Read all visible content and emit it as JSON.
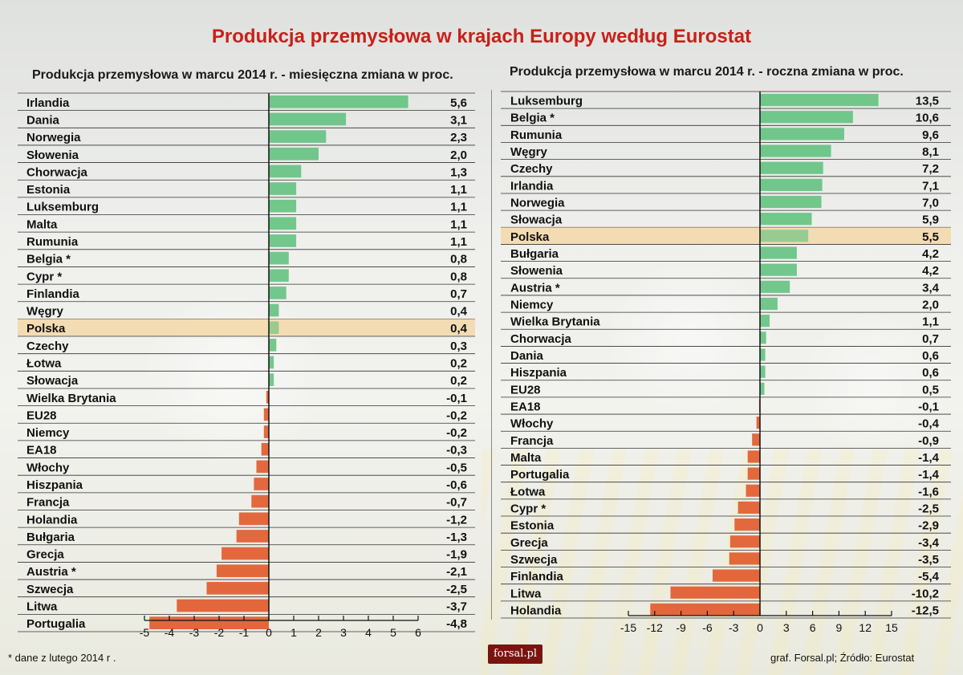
{
  "title": "Produkcja przemysłowa w krajach Europy według Eurostat",
  "footnote": "* dane z lutego 2014 r .",
  "source": "graf. Forsal.pl; Źródło: Eurostat",
  "logo": "forsal.pl",
  "colors": {
    "positive": "#5cc07a",
    "negative": "#e0501e",
    "highlight": "#f3d8a8",
    "title": "#c8201a"
  },
  "highlight_country": "Polska",
  "chart_data": [
    {
      "type": "bar",
      "title": "Produkcja przemysłowa w marcu 2014 r. - miesięczna zmiana w proc.",
      "orientation": "horizontal",
      "categories": [
        "Irlandia",
        "Dania",
        "Norwegia",
        "Słowenia",
        "Chorwacja",
        "Estonia",
        "Luksemburg",
        "Malta",
        "Rumunia",
        "Belgia *",
        "Cypr *",
        "Finlandia",
        "Węgry",
        "Polska",
        "Czechy",
        "Łotwa",
        "Słowacja",
        "Wielka Brytania",
        "EU28",
        "Niemcy",
        "EA18",
        "Włochy",
        "Hiszpania",
        "Francja",
        "Holandia",
        "Bułgaria",
        "Grecja",
        "Austria *",
        "Szwecja",
        "Litwa",
        "Portugalia"
      ],
      "values": [
        5.6,
        3.1,
        2.3,
        2.0,
        1.3,
        1.1,
        1.1,
        1.1,
        1.1,
        0.8,
        0.8,
        0.7,
        0.4,
        0.4,
        0.3,
        0.2,
        0.2,
        -0.1,
        -0.2,
        -0.2,
        -0.3,
        -0.5,
        -0.6,
        -0.7,
        -1.2,
        -1.3,
        -1.9,
        -2.1,
        -2.5,
        -3.7,
        -4.8
      ],
      "value_labels": [
        "5,6",
        "3,1",
        "2,3",
        "2,0",
        "1,3",
        "1,1",
        "1,1",
        "1,1",
        "1,1",
        "0,8",
        "0,8",
        "0,7",
        "0,4",
        "0,4",
        "0,3",
        "0,2",
        "0,2",
        "-0,1",
        "-0,2",
        "-0,2",
        "-0,3",
        "-0,5",
        "-0,6",
        "-0,7",
        "-1,2",
        "-1,3",
        "-1,9",
        "-2,1",
        "-2,5",
        "-3,7",
        "-4,8"
      ],
      "xlim": [
        -5,
        6
      ],
      "xticks": [
        -5,
        -4,
        -3,
        -2,
        -1,
        0,
        1,
        2,
        3,
        4,
        5,
        6
      ]
    },
    {
      "type": "bar",
      "title": "Produkcja przemysłowa w marcu 2014 r. - roczna zmiana w proc.",
      "orientation": "horizontal",
      "categories": [
        "Luksemburg",
        "Belgia *",
        "Rumunia",
        "Węgry",
        "Czechy",
        "Irlandia",
        "Norwegia",
        "Słowacja",
        "Polska",
        "Bułgaria",
        "Słowenia",
        "Austria *",
        "Niemcy",
        "Wielka Brytania",
        "Chorwacja",
        "Dania",
        "Hiszpania",
        "EU28",
        "EA18",
        "Włochy",
        "Francja",
        "Malta",
        "Portugalia",
        "Łotwa",
        "Cypr *",
        "Estonia",
        "Grecja",
        "Szwecja",
        "Finlandia",
        "Litwa",
        "Holandia"
      ],
      "values": [
        13.5,
        10.6,
        9.6,
        8.1,
        7.2,
        7.1,
        7.0,
        5.9,
        5.5,
        4.2,
        4.2,
        3.4,
        2.0,
        1.1,
        0.7,
        0.6,
        0.6,
        0.5,
        -0.1,
        -0.4,
        -0.9,
        -1.4,
        -1.4,
        -1.6,
        -2.5,
        -2.9,
        -3.4,
        -3.5,
        -5.4,
        -10.2,
        -12.5
      ],
      "value_labels": [
        "13,5",
        "10,6",
        "9,6",
        "8,1",
        "7,2",
        "7,1",
        "7,0",
        "5,9",
        "5,5",
        "4,2",
        "4,2",
        "3,4",
        "2,0",
        "1,1",
        "0,7",
        "0,6",
        "0,6",
        "0,5",
        "-0,1",
        "-0,4",
        "-0,9",
        "-1,4",
        "-1,4",
        "-1,6",
        "-2,5",
        "-2,9",
        "-3,4",
        "-3,5",
        "-5,4",
        "-10,2",
        "-12,5"
      ],
      "xlim": [
        -15,
        15
      ],
      "xticks": [
        -15,
        -12,
        -9,
        -6,
        -3,
        0,
        3,
        6,
        9,
        12,
        15
      ]
    }
  ]
}
